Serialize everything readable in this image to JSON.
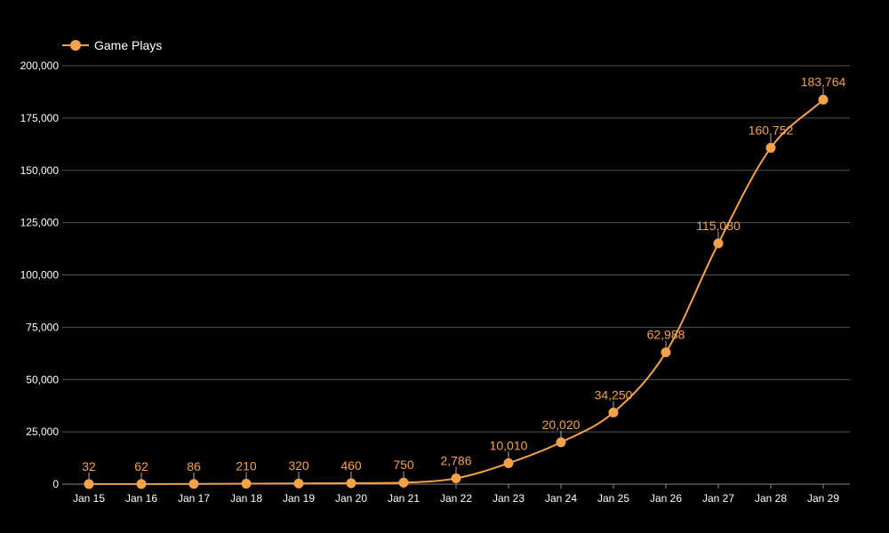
{
  "colors": {
    "background": "#000000",
    "series": "#f6a24a",
    "grid": "#555555",
    "text": "#ffffff"
  },
  "chart_data": {
    "type": "line",
    "categories": [
      "Jan 15",
      "Jan 16",
      "Jan 17",
      "Jan 18",
      "Jan 19",
      "Jan 20",
      "Jan 21",
      "Jan 22",
      "Jan 23",
      "Jan 24",
      "Jan 25",
      "Jan 26",
      "Jan 27",
      "Jan 28",
      "Jan 29"
    ],
    "series": [
      {
        "name": "Game Plays",
        "values": [
          32,
          62,
          86,
          210,
          320,
          460,
          750,
          2786,
          10010,
          20020,
          34250,
          62988,
          115080,
          160752,
          183764
        ]
      }
    ],
    "data_labels": [
      "32",
      "62",
      "86",
      "210",
      "320",
      "460",
      "750",
      "2,786",
      "10,010",
      "20,020",
      "34,250",
      "62,988",
      "115,080",
      "160,752",
      "183,764"
    ],
    "y_ticks": [
      "0",
      "25,000",
      "50,000",
      "75,000",
      "100,000",
      "125,000",
      "150,000",
      "175,000",
      "200,000"
    ],
    "ylim": [
      0,
      200000
    ],
    "grid": true,
    "legend": "top-left",
    "smooth": true
  }
}
